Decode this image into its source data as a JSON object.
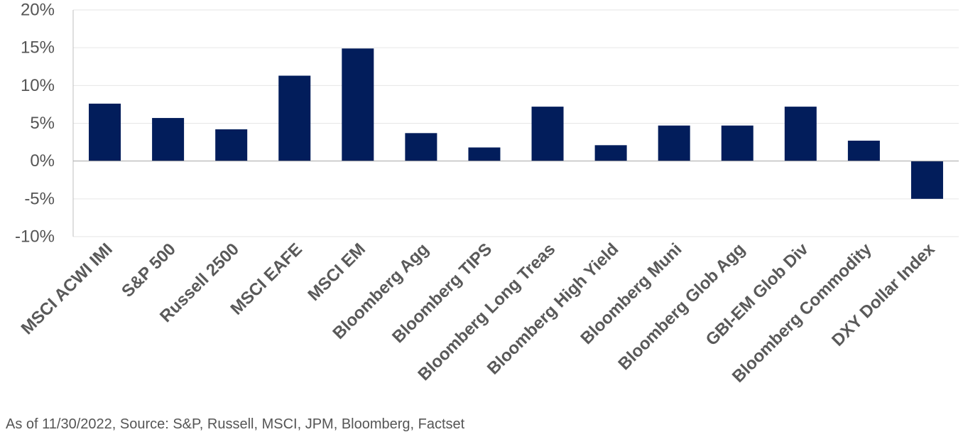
{
  "chart_data": {
    "type": "bar",
    "title": "",
    "xlabel": "",
    "ylabel": "",
    "categories": [
      "MSCI ACWI IMI",
      "S&P 500",
      "Russell 2500",
      "MSCI EAFE",
      "MSCI EM",
      "Bloomberg Agg",
      "Bloomberg TIPS",
      "Bloomberg Long Treas",
      "Bloomberg High Yield",
      "Bloomberg Muni",
      "Bloomberg Glob Agg",
      "GBI-EM Glob Div",
      "Bloomberg Commodity",
      "DXY Dollar Index"
    ],
    "values": [
      7.6,
      5.7,
      4.2,
      11.3,
      14.9,
      3.7,
      1.8,
      7.2,
      2.1,
      4.7,
      4.7,
      7.2,
      2.7,
      -5.0
    ],
    "value_unit": "%",
    "ylim": [
      -10,
      20
    ],
    "yticks": [
      -10,
      -5,
      0,
      5,
      10,
      15,
      20
    ],
    "ytick_labels": [
      "-10%",
      "-5%",
      "0%",
      "5%",
      "10%",
      "15%",
      "20%"
    ],
    "grid": true,
    "bar_color": "#021d5b",
    "legend": "none"
  },
  "footer": {
    "source": "As of 11/30/2022, Source: S&P, Russell, MSCI, JPM, Bloomberg, Factset"
  }
}
